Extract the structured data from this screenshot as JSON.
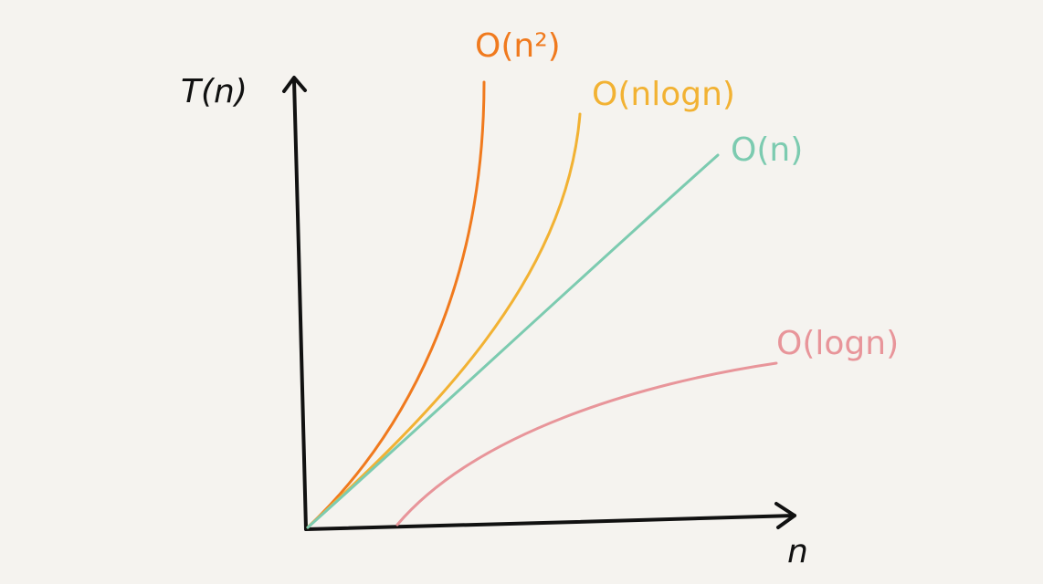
{
  "axes": {
    "y_label": "T(n)",
    "x_label": "n"
  },
  "curves": [
    {
      "label": "O(n²)",
      "color": "#f07a1e"
    },
    {
      "label": "O(nlogn)",
      "color": "#f2b233"
    },
    {
      "label": "O(n)",
      "color": "#7ccbb0"
    },
    {
      "label": "O(logn)",
      "color": "#e8959a"
    }
  ]
}
